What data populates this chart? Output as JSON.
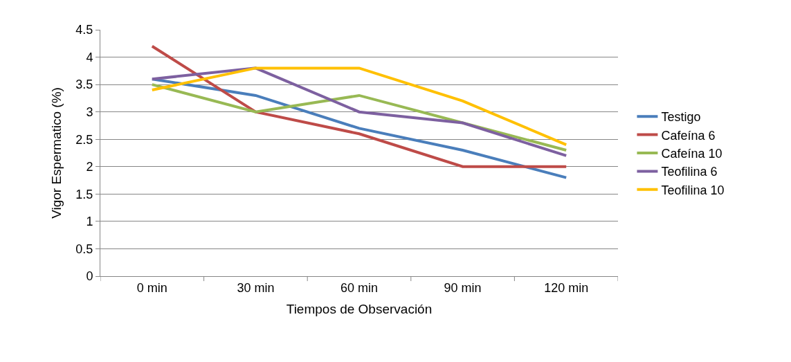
{
  "chart_data": {
    "type": "line",
    "xlabel": "Tiempos de Observación",
    "ylabel": "Vigor Espermatico (%)",
    "categories": [
      "0 min",
      "30 min",
      "60 min",
      "90 min",
      "120 min"
    ],
    "series": [
      {
        "name": "Testigo",
        "color": "#4a7ebb",
        "values": [
          3.6,
          3.3,
          2.7,
          2.3,
          1.8
        ]
      },
      {
        "name": "Cafeína 6",
        "color": "#be4b48",
        "values": [
          4.2,
          3.0,
          2.6,
          2.0,
          2.0
        ]
      },
      {
        "name": "Cafeína 10",
        "color": "#98b954",
        "values": [
          3.5,
          3.0,
          3.3,
          2.8,
          2.3
        ]
      },
      {
        "name": "Teofilina 6",
        "color": "#7d60a0",
        "values": [
          3.6,
          3.8,
          3.0,
          2.8,
          2.2
        ]
      },
      {
        "name": "Teofilina 10",
        "color": "#ffc000",
        "values": [
          3.4,
          3.8,
          3.8,
          3.2,
          2.4
        ]
      }
    ],
    "ylim": [
      0,
      4.5
    ],
    "yticks": [
      0,
      0.5,
      1,
      1.5,
      2,
      2.5,
      3,
      3.5,
      4,
      4.5
    ],
    "grid": "y",
    "legend": "right",
    "marker": "none",
    "line_style": "solid"
  }
}
